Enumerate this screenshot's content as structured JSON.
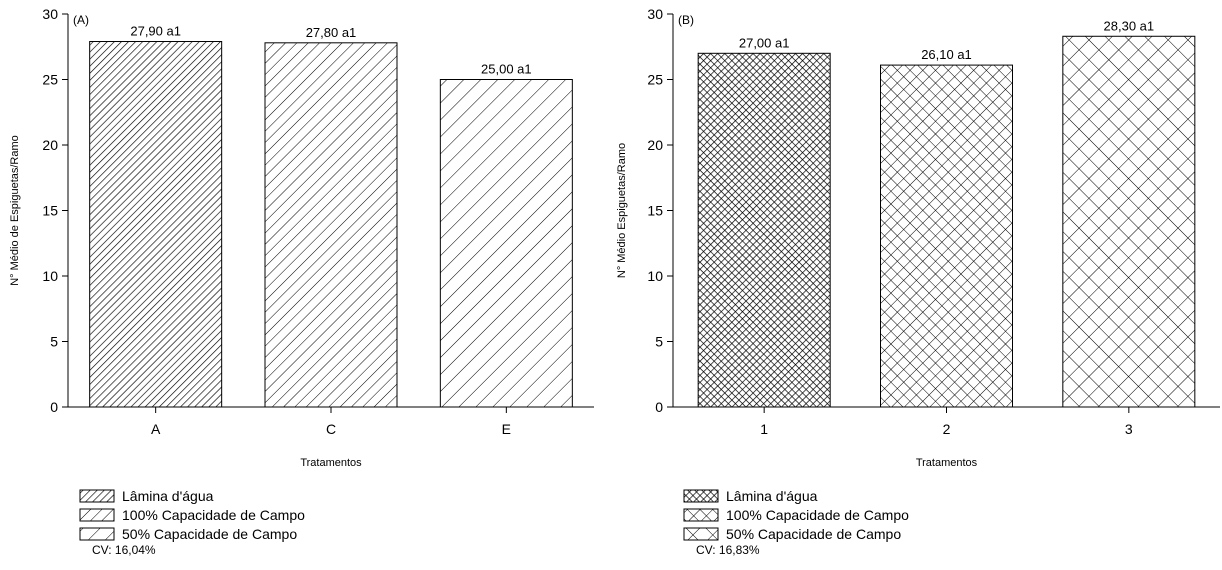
{
  "chart_data": [
    {
      "type": "bar",
      "panel_label": "(A)",
      "categories": [
        "A",
        "C",
        "E"
      ],
      "values": [
        27.9,
        27.8,
        25.0
      ],
      "data_labels": [
        "27,90 a1",
        "27,80 a1",
        "25,00 a1"
      ],
      "xlabel": "Tratamentos",
      "ylabel": "N° Médio de Espiguetas/Ramo",
      "ylim": [
        0,
        30
      ],
      "yticks": [
        0,
        5,
        10,
        15,
        20,
        25,
        30
      ],
      "grid": false,
      "legend": {
        "placement": "below",
        "entries": [
          "Lâmina d'água",
          "100% Capacidade de Campo",
          "50% Capacidade de Campo"
        ]
      },
      "patterns": [
        "dense-diagonal-hatch",
        "diagonal-hatch",
        "sparse-diagonal-hatch"
      ],
      "cv": "CV: 16,04%"
    },
    {
      "type": "bar",
      "panel_label": "(B)",
      "categories": [
        "1",
        "2",
        "3"
      ],
      "values": [
        27.0,
        26.1,
        28.3
      ],
      "data_labels": [
        "27,00 a1",
        "26,10 a1",
        "28,30 a1"
      ],
      "xlabel": "Tratamentos",
      "ylabel": "N° Médio Espiguetas/Ramo",
      "ylim": [
        0,
        30
      ],
      "yticks": [
        0,
        5,
        10,
        15,
        20,
        25,
        30
      ],
      "grid": false,
      "legend": {
        "placement": "below",
        "entries": [
          "Lâmina d'água",
          "100% Capacidade de Campo",
          "50% Capacidade de Campo"
        ]
      },
      "patterns": [
        "dense-crosshatch",
        "crosshatch",
        "sparse-crosshatch"
      ],
      "cv": "CV: 16,83%"
    }
  ]
}
